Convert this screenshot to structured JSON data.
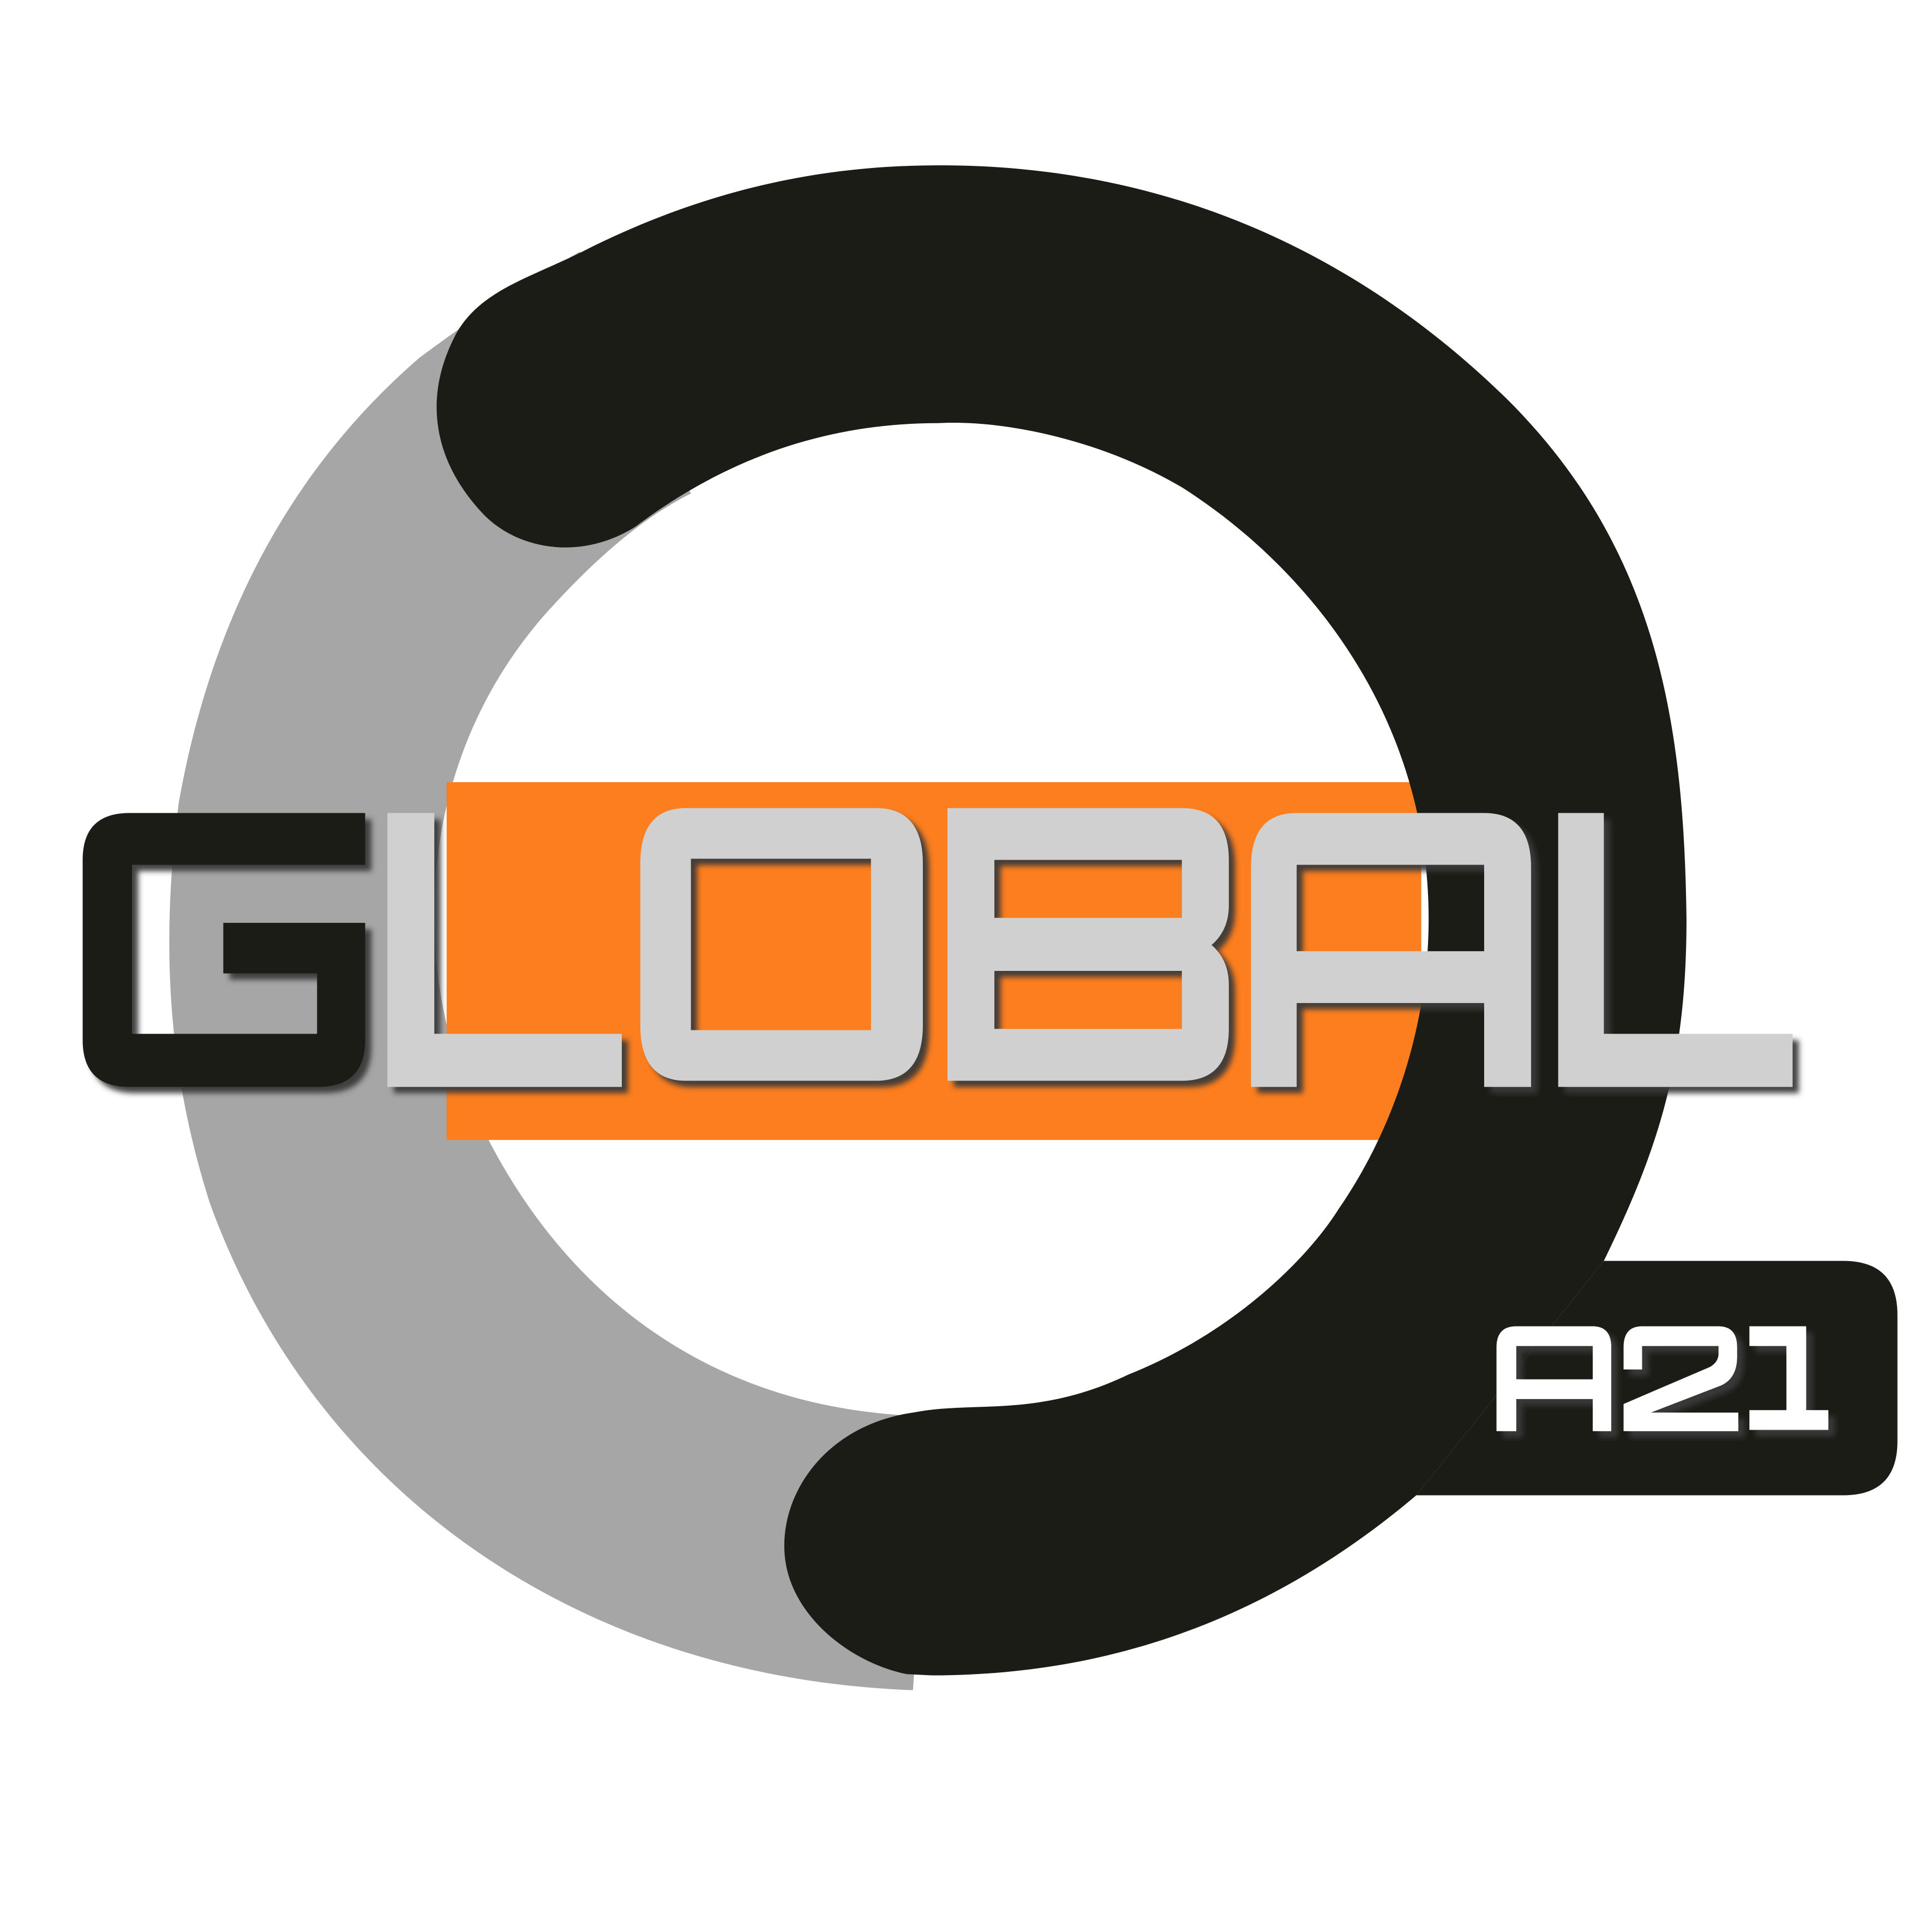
{
  "logo": {
    "word": "GLOBAL",
    "letters": [
      "G",
      "L",
      "O",
      "B",
      "A",
      "L"
    ],
    "badge_text": "A21",
    "colors": {
      "background": "#ffffff",
      "ring_dark": "#1c1c17",
      "ring_gray": "#a6a6a6",
      "accent_orange": "#fd7e1e",
      "letter_light": "#d0d0d0",
      "letter_dark": "#1c1c17",
      "badge_text": "#ffffff",
      "shadow": "#3a3a3a"
    }
  }
}
